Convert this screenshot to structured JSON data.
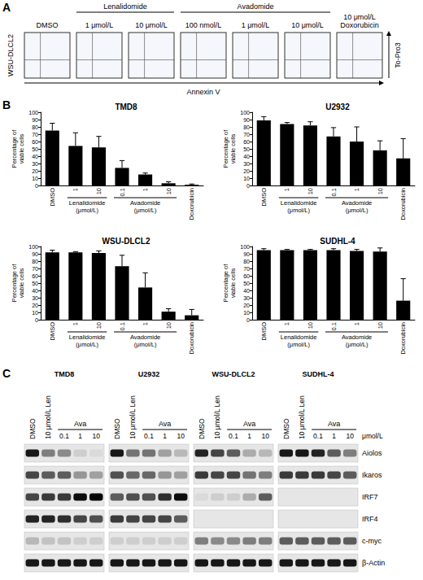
{
  "panel_letters": [
    "A",
    "B",
    "C"
  ],
  "panel_a": {
    "cell_line": "WSU-DLCL2",
    "groups": [
      {
        "label": "Lenalidomide",
        "start": 1,
        "end": 2
      },
      {
        "label": "Avadomide",
        "start": 3,
        "end": 5
      }
    ],
    "lanes": [
      "DMSO",
      "1 μmol/L",
      "10 μmol/L",
      "100 nmol/L",
      "1 μmol/L",
      "10 μmol/L",
      "10 μmol/L Doxorubicin"
    ],
    "x_label": "Annexin V",
    "y_label": "To-Pro3"
  },
  "chart_data": [
    {
      "type": "bar",
      "title": "TMD8",
      "categories": [
        "DMSO",
        "1",
        "10",
        "0.1",
        "1",
        "10",
        "Doxorubicin"
      ],
      "values": [
        75,
        54,
        52,
        24,
        15,
        3,
        1
      ],
      "errors": [
        10,
        18,
        15,
        10,
        2,
        2,
        1
      ],
      "color": "#000000",
      "ylim": [
        0,
        100
      ],
      "yticks": [
        0,
        10,
        20,
        30,
        40,
        50,
        60,
        70,
        80,
        90,
        100
      ],
      "grid": false,
      "y_label": "Percentage of viable cells",
      "groups": [
        {
          "label": "Lenalidomide (μmol/L)",
          "start": 1,
          "end": 2
        },
        {
          "label": "Avadomide (μmol/L)",
          "start": 3,
          "end": 5
        }
      ]
    },
    {
      "type": "bar",
      "title": "U2932",
      "categories": [
        "DMSO",
        "1",
        "10",
        "0.1",
        "1",
        "10",
        "Doxorubicin"
      ],
      "values": [
        89,
        84,
        82,
        67,
        60,
        48,
        37
      ],
      "errors": [
        5,
        2,
        5,
        12,
        20,
        13,
        27
      ],
      "color": "#000000",
      "ylim": [
        0,
        100
      ],
      "yticks": [
        0,
        10,
        20,
        30,
        40,
        50,
        60,
        70,
        80,
        90,
        100
      ],
      "grid": false,
      "y_label": "Percentage of viable cells",
      "groups": [
        {
          "label": "Lenalidomide (μmol/L)",
          "start": 1,
          "end": 2
        },
        {
          "label": "Avadomide (μmol/L)",
          "start": 3,
          "end": 5
        }
      ]
    },
    {
      "type": "bar",
      "title": "WSU-DLCL2",
      "categories": [
        "DMSO",
        "1",
        "10",
        "0.1",
        "1",
        "10",
        "Doxorubicin"
      ],
      "values": [
        92,
        92,
        91,
        73,
        44,
        11,
        6
      ],
      "errors": [
        3,
        1,
        3,
        15,
        20,
        4,
        8
      ],
      "color": "#000000",
      "ylim": [
        0,
        100
      ],
      "yticks": [
        0,
        10,
        20,
        30,
        40,
        50,
        60,
        70,
        80,
        90,
        100
      ],
      "grid": false,
      "y_label": "Percentage of viable cells",
      "groups": [
        {
          "label": "Lenalidomide (μmol/L)",
          "start": 1,
          "end": 2
        },
        {
          "label": "Avadomide (μmol/L)",
          "start": 3,
          "end": 5
        }
      ]
    },
    {
      "type": "bar",
      "title": "SUDHL-4",
      "categories": [
        "DMSO",
        "1",
        "10",
        "0.1",
        "1",
        "10",
        "Doxorubicin"
      ],
      "values": [
        95,
        95,
        95,
        95,
        94,
        93,
        26
      ],
      "errors": [
        2,
        1,
        1,
        2,
        2,
        5,
        30
      ],
      "color": "#000000",
      "ylim": [
        0,
        100
      ],
      "yticks": [
        0,
        10,
        20,
        30,
        40,
        50,
        60,
        70,
        80,
        90,
        100
      ],
      "grid": false,
      "y_label": "Percentage of viable cells",
      "groups": [
        {
          "label": "Lenalidomide (μmol/L)",
          "start": 1,
          "end": 2
        },
        {
          "label": "Avadomide (μmol/L)",
          "start": 3,
          "end": 5
        }
      ]
    }
  ],
  "panel_c": {
    "cell_lines": [
      "TMD8",
      "U2932",
      "WSU-DLCL2",
      "SUDHL-4"
    ],
    "lane_labels": [
      "DMSO",
      "10 μmol/L Len"
    ],
    "group": {
      "label": "Ava",
      "lanes": [
        "0.1",
        "1",
        "10"
      ]
    },
    "unit": "μmol/L",
    "blots": [
      {
        "protein": "Aiolos",
        "intensity": [
          [
            0.9,
            0.45,
            0.4,
            0.1,
            0.05
          ],
          [
            0.9,
            0.5,
            0.5,
            0.3,
            0.2
          ],
          [
            0.85,
            0.7,
            0.6,
            0.25,
            0.2
          ],
          [
            0.9,
            0.9,
            0.85,
            0.6,
            0.45
          ]
        ]
      },
      {
        "protein": "Ikaros",
        "intensity": [
          [
            0.7,
            0.6,
            0.6,
            0.35,
            0.3
          ],
          [
            0.65,
            0.55,
            0.55,
            0.35,
            0.3
          ],
          [
            0.75,
            0.7,
            0.7,
            0.5,
            0.45
          ],
          [
            0.75,
            0.75,
            0.75,
            0.7,
            0.6
          ]
        ]
      },
      {
        "protein": "IRF7",
        "intensity": [
          [
            0.7,
            0.75,
            0.75,
            0.95,
            1.0
          ],
          [
            0.6,
            0.65,
            0.65,
            0.8,
            0.95
          ],
          [
            0.05,
            0.1,
            0.1,
            0.25,
            0.6
          ],
          [
            0,
            0,
            0,
            0,
            0
          ]
        ]
      },
      {
        "protein": "IRF4",
        "intensity": [
          [
            0.85,
            0.85,
            0.8,
            0.7,
            0.65
          ],
          [
            0.75,
            0.7,
            0.7,
            0.7,
            0.6
          ],
          [
            0,
            0,
            0,
            0,
            0
          ],
          [
            0,
            0,
            0,
            0,
            0
          ]
        ]
      },
      {
        "protein": "c-myc",
        "intensity": [
          [
            0.2,
            0.15,
            0.15,
            0.1,
            0.1
          ],
          [
            0.1,
            0.1,
            0.1,
            0.1,
            0.1
          ],
          [
            0.45,
            0.4,
            0.4,
            0.45,
            0.45
          ],
          [
            0.6,
            0.6,
            0.6,
            0.6,
            0.6
          ]
        ]
      },
      {
        "protein": "β-Actin",
        "intensity": [
          [
            0.9,
            0.9,
            0.9,
            0.9,
            0.9
          ],
          [
            0.9,
            0.9,
            0.9,
            0.9,
            0.9
          ],
          [
            0.9,
            0.9,
            0.9,
            0.9,
            0.9
          ],
          [
            0.9,
            0.9,
            0.9,
            0.9,
            0.9
          ]
        ]
      }
    ]
  }
}
